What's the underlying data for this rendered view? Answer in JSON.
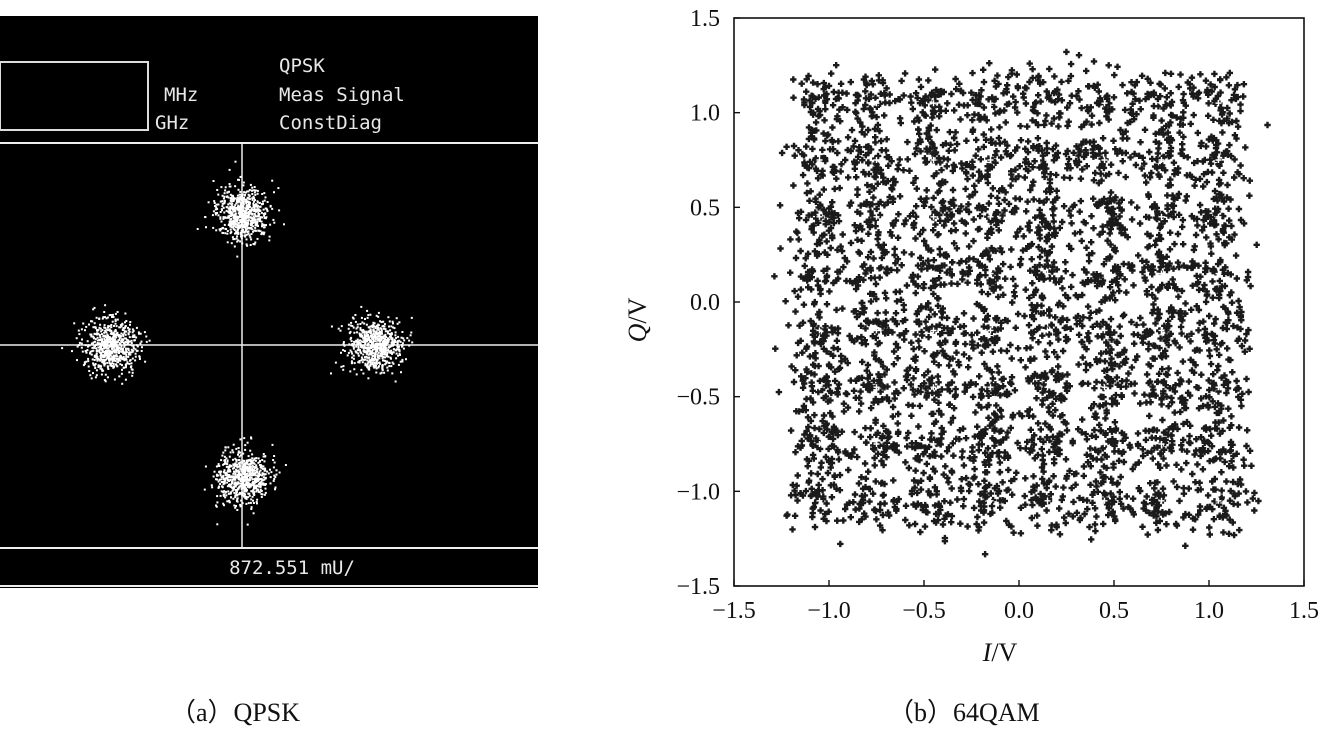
{
  "panel_a": {
    "caption": "（a）QPSK",
    "header": {
      "unit_mhz": "MHz",
      "unit_ghz": "GHz",
      "line1": "QPSK",
      "line2": "Meas Signal",
      "line3": "ConstDiag"
    },
    "footer_readout": "872.551 mU/",
    "colors": {
      "screen_bg": "#000000",
      "trace": "#ffffff",
      "text": "#e8e8e8"
    }
  },
  "panel_b": {
    "caption": "（b）64QAM",
    "x_label_italic": "I",
    "x_label_unit": "/V",
    "y_label_italic": "Q",
    "y_label_unit": "/V",
    "x_ticks": [
      "−1.5",
      "−1.0",
      "−0.5",
      "0.0",
      "0.5",
      "1.0",
      "1.5"
    ],
    "y_ticks": [
      "1.5",
      "1.0",
      "0.5",
      "0.0",
      "−0.5",
      "−1.0",
      "−1.5"
    ]
  },
  "chart_data": [
    {
      "type": "scatter",
      "title": "",
      "modulation": "QPSK",
      "clusters": [
        {
          "i": 0.0,
          "q": 1.0
        },
        {
          "i": -1.0,
          "q": 0.0
        },
        {
          "i": 1.0,
          "q": 0.0
        },
        {
          "i": 0.0,
          "q": -1.0
        }
      ],
      "scale_readout": "872.551 mU/",
      "grid": false
    },
    {
      "type": "scatter",
      "title": "",
      "modulation": "64QAM",
      "xlabel": "I/V",
      "ylabel": "Q/V",
      "xlim": [
        -1.5,
        1.5
      ],
      "ylim": [
        -1.5,
        1.5
      ],
      "ideal_levels": [
        -1.05,
        -0.75,
        -0.45,
        -0.15,
        0.15,
        0.45,
        0.75,
        1.05
      ],
      "points_extent": [
        -1.3,
        1.3
      ],
      "grid": false
    }
  ]
}
